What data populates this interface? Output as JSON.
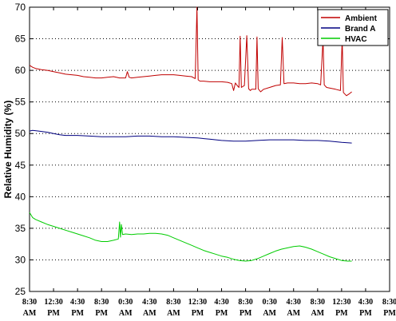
{
  "chart_data": {
    "type": "line",
    "ylabel": "Relative Humidity (%)",
    "xlabel": "",
    "ylim": [
      25,
      70
    ],
    "yticks": [
      25,
      30,
      35,
      40,
      45,
      50,
      55,
      60,
      65,
      70
    ],
    "grid": "horizontal-dotted",
    "legend_position": "top-right",
    "x_ticks": [
      {
        "time": "8:30",
        "period": "AM"
      },
      {
        "time": "12:30",
        "period": "PM"
      },
      {
        "time": "4:30",
        "period": "PM"
      },
      {
        "time": "8:30",
        "period": "PM"
      },
      {
        "time": "0:30",
        "period": "AM"
      },
      {
        "time": "4:30",
        "period": "AM"
      },
      {
        "time": "8:30",
        "period": "AM"
      },
      {
        "time": "12:30",
        "period": "PM"
      },
      {
        "time": "4:30",
        "period": "PM"
      },
      {
        "time": "8:30",
        "period": "PM"
      },
      {
        "time": "0:30",
        "period": "AM"
      },
      {
        "time": "4:30",
        "period": "AM"
      },
      {
        "time": "8:30",
        "period": "AM"
      },
      {
        "time": "12:30",
        "period": "PM"
      },
      {
        "time": "4:30",
        "period": "PM"
      },
      {
        "time": "8:30",
        "period": "PM"
      }
    ],
    "x_unit": "hours",
    "series": [
      {
        "name": "Ambient",
        "color": "#c00000",
        "points": [
          [
            0,
            60.8
          ],
          [
            0.5,
            60.5
          ],
          [
            1,
            60.3
          ],
          [
            2,
            60.1
          ],
          [
            3,
            60.0
          ],
          [
            4,
            59.8
          ],
          [
            5,
            59.6
          ],
          [
            6,
            59.4
          ],
          [
            7,
            59.3
          ],
          [
            8,
            59.2
          ],
          [
            9,
            59.0
          ],
          [
            10,
            58.9
          ],
          [
            11,
            58.8
          ],
          [
            12,
            58.8
          ],
          [
            13,
            58.9
          ],
          [
            14,
            59.0
          ],
          [
            15,
            58.8
          ],
          [
            16,
            58.8
          ],
          [
            16.3,
            59.8
          ],
          [
            16.6,
            58.9
          ],
          [
            17,
            58.8
          ],
          [
            18,
            58.9
          ],
          [
            19,
            59.0
          ],
          [
            20,
            59.1
          ],
          [
            21,
            59.2
          ],
          [
            22,
            59.3
          ],
          [
            23,
            59.3
          ],
          [
            24,
            59.3
          ],
          [
            25,
            59.2
          ],
          [
            26,
            59.1
          ],
          [
            27,
            59.0
          ],
          [
            27.6,
            58.7
          ],
          [
            27.9,
            70.0
          ],
          [
            28.1,
            58.5
          ],
          [
            28.4,
            58.3
          ],
          [
            29,
            58.3
          ],
          [
            30,
            58.2
          ],
          [
            31,
            58.2
          ],
          [
            32,
            58.2
          ],
          [
            33,
            58.1
          ],
          [
            33.7,
            57.9
          ],
          [
            34.0,
            56.8
          ],
          [
            34.3,
            58.0
          ],
          [
            34.6,
            57.6
          ],
          [
            34.9,
            57.3
          ],
          [
            35.1,
            65.4
          ],
          [
            35.3,
            57.3
          ],
          [
            35.8,
            57.6
          ],
          [
            36.2,
            65.5
          ],
          [
            36.5,
            57.1
          ],
          [
            36.8,
            56.8
          ],
          [
            37.0,
            57.0
          ],
          [
            37.7,
            57.0
          ],
          [
            37.9,
            65.3
          ],
          [
            38.1,
            57.1
          ],
          [
            38.5,
            56.6
          ],
          [
            39,
            57.0
          ],
          [
            40,
            57.3
          ],
          [
            41,
            57.6
          ],
          [
            41.8,
            57.7
          ],
          [
            42.1,
            65.2
          ],
          [
            42.4,
            57.9
          ],
          [
            43,
            58.0
          ],
          [
            44,
            58.0
          ],
          [
            45,
            57.9
          ],
          [
            46,
            57.9
          ],
          [
            47,
            58.0
          ],
          [
            48,
            57.9
          ],
          [
            48.5,
            57.7
          ],
          [
            48.9,
            65.0
          ],
          [
            49.1,
            57.7
          ],
          [
            49.5,
            57.3
          ],
          [
            50,
            57.2
          ],
          [
            51,
            57.0
          ],
          [
            51.8,
            56.8
          ],
          [
            52.1,
            65.0
          ],
          [
            52.3,
            56.5
          ],
          [
            52.8,
            56.0
          ],
          [
            53.3,
            56.3
          ],
          [
            53.7,
            56.6
          ]
        ]
      },
      {
        "name": "Brand A",
        "color": "#000080",
        "points": [
          [
            0,
            50.4
          ],
          [
            0.5,
            50.5
          ],
          [
            1.5,
            50.4
          ],
          [
            3,
            50.2
          ],
          [
            4,
            50.0
          ],
          [
            5,
            49.8
          ],
          [
            6,
            49.7
          ],
          [
            8,
            49.7
          ],
          [
            10,
            49.6
          ],
          [
            12,
            49.5
          ],
          [
            14,
            49.5
          ],
          [
            16,
            49.5
          ],
          [
            18,
            49.6
          ],
          [
            20,
            49.6
          ],
          [
            22,
            49.5
          ],
          [
            24,
            49.5
          ],
          [
            26,
            49.4
          ],
          [
            28,
            49.3
          ],
          [
            30,
            49.1
          ],
          [
            32,
            48.9
          ],
          [
            34,
            48.8
          ],
          [
            36,
            48.8
          ],
          [
            38,
            48.9
          ],
          [
            40,
            49.0
          ],
          [
            42,
            49.0
          ],
          [
            44,
            49.0
          ],
          [
            46,
            48.9
          ],
          [
            48,
            48.9
          ],
          [
            50,
            48.8
          ],
          [
            52,
            48.6
          ],
          [
            53.7,
            48.5
          ]
        ]
      },
      {
        "name": "HVAC",
        "color": "#00cc00",
        "points": [
          [
            0,
            37.5
          ],
          [
            0.5,
            36.7
          ],
          [
            1,
            36.4
          ],
          [
            2,
            36.0
          ],
          [
            3,
            35.6
          ],
          [
            4,
            35.3
          ],
          [
            5,
            35.0
          ],
          [
            6,
            34.7
          ],
          [
            7,
            34.4
          ],
          [
            8,
            34.1
          ],
          [
            9,
            33.8
          ],
          [
            10,
            33.5
          ],
          [
            11,
            33.1
          ],
          [
            12,
            32.9
          ],
          [
            13,
            32.9
          ],
          [
            14,
            33.1
          ],
          [
            14.8,
            33.3
          ],
          [
            15.0,
            36.0
          ],
          [
            15.15,
            33.6
          ],
          [
            15.3,
            35.6
          ],
          [
            15.5,
            34.0
          ],
          [
            16,
            34.1
          ],
          [
            17,
            34.0
          ],
          [
            18,
            34.1
          ],
          [
            19,
            34.1
          ],
          [
            20,
            34.2
          ],
          [
            21,
            34.2
          ],
          [
            22,
            34.1
          ],
          [
            23,
            33.9
          ],
          [
            24,
            33.5
          ],
          [
            25,
            33.1
          ],
          [
            26,
            32.7
          ],
          [
            27,
            32.3
          ],
          [
            28,
            31.9
          ],
          [
            29,
            31.5
          ],
          [
            30,
            31.2
          ],
          [
            31,
            30.9
          ],
          [
            32,
            30.6
          ],
          [
            33,
            30.4
          ],
          [
            34,
            30.1
          ],
          [
            35,
            29.9
          ],
          [
            36,
            29.8
          ],
          [
            37,
            29.9
          ],
          [
            38,
            30.2
          ],
          [
            39,
            30.6
          ],
          [
            40,
            31.0
          ],
          [
            41,
            31.4
          ],
          [
            42,
            31.7
          ],
          [
            43,
            31.9
          ],
          [
            44,
            32.1
          ],
          [
            45,
            32.2
          ],
          [
            46,
            32.0
          ],
          [
            47,
            31.7
          ],
          [
            48,
            31.3
          ],
          [
            49,
            30.9
          ],
          [
            50,
            30.5
          ],
          [
            51,
            30.2
          ],
          [
            52,
            29.9
          ],
          [
            53,
            29.8
          ],
          [
            53.7,
            29.8
          ]
        ]
      }
    ]
  }
}
